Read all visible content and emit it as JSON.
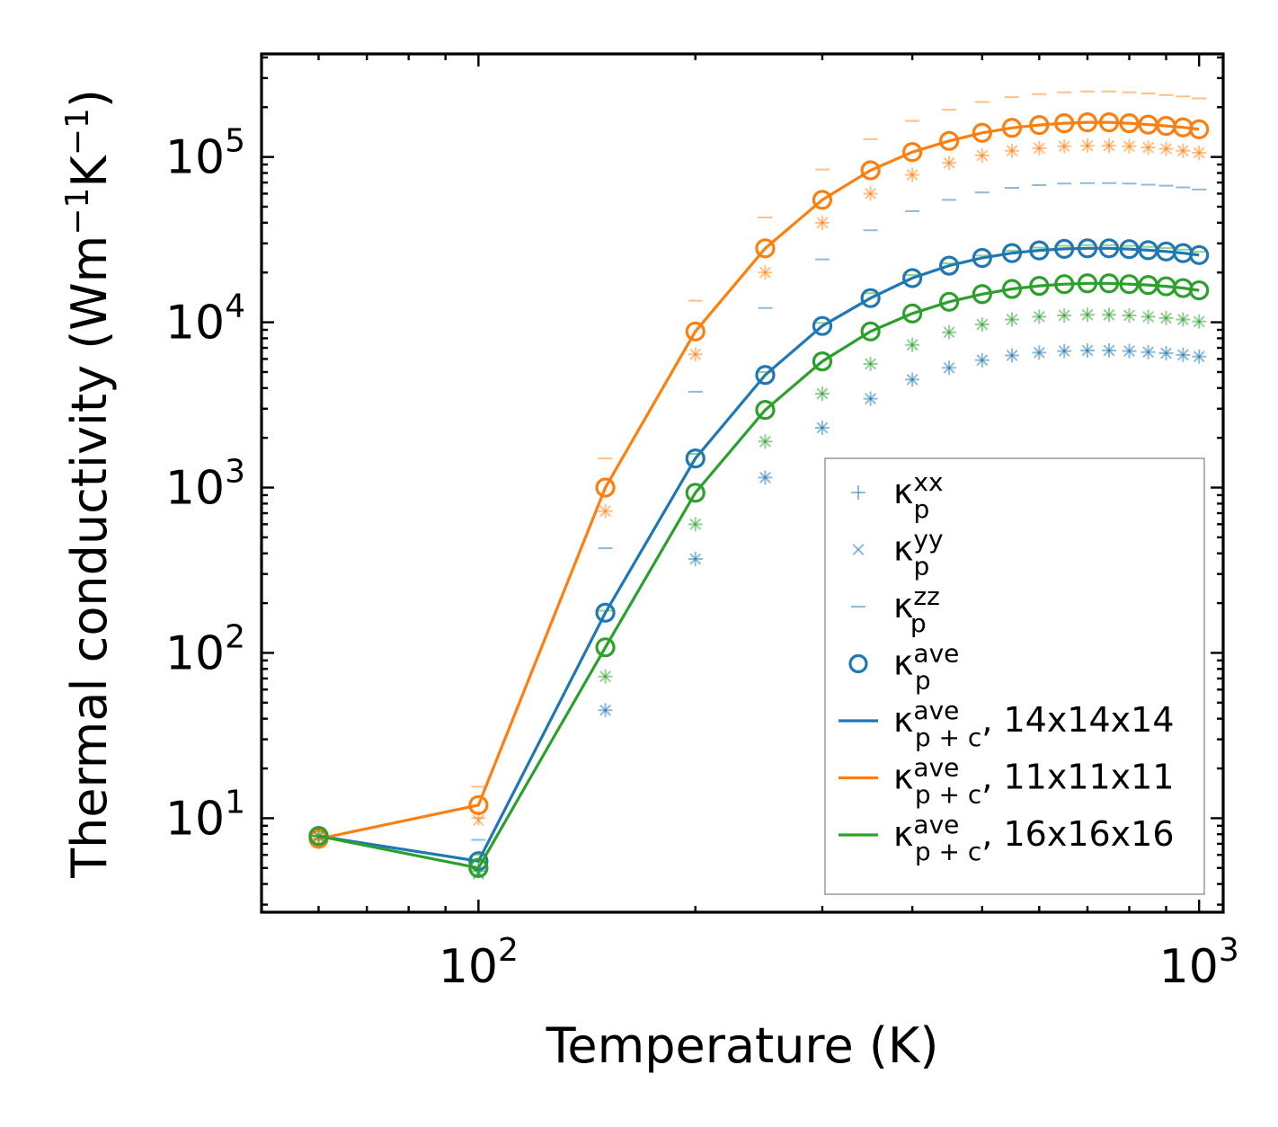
{
  "chart_data": {
    "type": "line",
    "xscale": "log",
    "yscale": "log",
    "xlim": [
      50,
      1080
    ],
    "ylim": [
      2.7,
      420000
    ],
    "xlabel": "Temperature (K)",
    "ylabel": {
      "main": "Thermal conductivity (Wm",
      "exp1": "−1",
      "mid": "K",
      "exp2": "−1",
      "close": ")"
    },
    "x_ticks": [
      {
        "value": 100,
        "base": "10",
        "exp": "2"
      },
      {
        "value": 1000,
        "base": "10",
        "exp": "3"
      }
    ],
    "y_ticks": [
      {
        "value": 10,
        "base": "10",
        "exp": "1"
      },
      {
        "value": 100,
        "base": "10",
        "exp": "2"
      },
      {
        "value": 1000,
        "base": "10",
        "exp": "3"
      },
      {
        "value": 10000,
        "base": "10",
        "exp": "4"
      },
      {
        "value": 100000,
        "base": "10",
        "exp": "5"
      }
    ],
    "x": [
      60,
      100,
      150,
      200,
      250,
      300,
      350,
      400,
      450,
      500,
      550,
      600,
      650,
      700,
      750,
      800,
      850,
      900,
      950,
      1000
    ],
    "series": [
      {
        "name": "14x14x14",
        "color": "#1f77b4",
        "ave": [
          7.8,
          5.5,
          175,
          1500,
          4800,
          9500,
          14000,
          18500,
          22000,
          24500,
          26200,
          27200,
          27800,
          28000,
          28000,
          27700,
          27300,
          26800,
          26200,
          25500
        ],
        "xx": [
          7.8,
          5.0,
          45,
          370,
          1150,
          2300,
          3450,
          4500,
          5300,
          5900,
          6300,
          6550,
          6700,
          6750,
          6750,
          6700,
          6600,
          6500,
          6350,
          6200
        ],
        "yy": [
          7.8,
          4.7,
          45,
          370,
          1150,
          2300,
          3450,
          4500,
          5300,
          5900,
          6300,
          6550,
          6700,
          6750,
          6750,
          6700,
          6600,
          6500,
          6350,
          6200
        ],
        "zz": [
          7.8,
          7.4,
          430,
          3800,
          12200,
          24000,
          36000,
          47000,
          55000,
          61000,
          65000,
          67500,
          69000,
          69500,
          69500,
          69000,
          68000,
          67000,
          65500,
          63500
        ]
      },
      {
        "name": "11x11x11",
        "color": "#ff7f0e",
        "ave": [
          7.5,
          12,
          1000,
          8800,
          28000,
          55000,
          83000,
          107000,
          125000,
          140000,
          150000,
          156000,
          160000,
          162000,
          162000,
          160000,
          157000,
          154000,
          151000,
          147000
        ],
        "xx": [
          7.5,
          10,
          720,
          6400,
          20000,
          40000,
          60000,
          78000,
          92000,
          102000,
          109000,
          113000,
          116000,
          117000,
          117000,
          116000,
          114000,
          112000,
          109000,
          106000
        ],
        "yy": [
          7.5,
          9.7,
          720,
          6400,
          20000,
          40000,
          60000,
          78000,
          92000,
          102000,
          109000,
          113000,
          116000,
          117000,
          117000,
          116000,
          114000,
          112000,
          109000,
          106000
        ],
        "zz": [
          7.5,
          15.5,
          1500,
          13500,
          43000,
          84000,
          128000,
          165000,
          193000,
          215000,
          230000,
          240000,
          246000,
          249000,
          249000,
          246000,
          242000,
          237000,
          232000,
          226000
        ]
      },
      {
        "name": "16x16x16",
        "color": "#2ca02c",
        "ave": [
          7.8,
          5.0,
          108,
          930,
          2950,
          5800,
          8800,
          11300,
          13300,
          14800,
          15900,
          16600,
          17000,
          17200,
          17200,
          17000,
          16800,
          16500,
          16100,
          15600
        ],
        "xx": [
          7.8,
          4.8,
          72,
          600,
          1900,
          3700,
          5600,
          7300,
          8700,
          9700,
          10400,
          10800,
          11000,
          11100,
          11100,
          11000,
          10800,
          10600,
          10400,
          10100
        ],
        "yy": [
          7.8,
          4.6,
          72,
          600,
          1900,
          3700,
          5600,
          7300,
          8700,
          9700,
          10400,
          10800,
          11000,
          11100,
          11100,
          11000,
          10800,
          10600,
          10400,
          10100
        ],
        "zz": [
          7.8,
          6.0,
          180,
          1600,
          5000,
          9900,
          15000,
          19300,
          22700,
          25300,
          27100,
          28300,
          29000,
          29300,
          29300,
          29000,
          28600,
          28100,
          27500,
          26700
        ]
      }
    ],
    "legend": {
      "placement": "lower-right",
      "entries": [
        {
          "marker": "plus",
          "color": "#1f77b4",
          "sym": "κ",
          "sub": "p",
          "sup": "xx",
          "suffix": ""
        },
        {
          "marker": "x",
          "color": "#1f77b4",
          "sym": "κ",
          "sub": "p",
          "sup": "yy",
          "suffix": ""
        },
        {
          "marker": "hline",
          "color": "#1f77b4",
          "sym": "κ",
          "sub": "p",
          "sup": "zz",
          "suffix": ""
        },
        {
          "marker": "circle",
          "color": "#1f77b4",
          "sym": "κ",
          "sub": "p",
          "sup": "ave",
          "suffix": ""
        },
        {
          "marker": "line",
          "color": "#1f77b4",
          "sym": "κ",
          "sub": "p + c",
          "sup": "ave",
          "suffix": ", 14x14x14"
        },
        {
          "marker": "line",
          "color": "#ff7f0e",
          "sym": "κ",
          "sub": "p + c",
          "sup": "ave",
          "suffix": ", 11x11x11"
        },
        {
          "marker": "line",
          "color": "#2ca02c",
          "sym": "κ",
          "sub": "p + c",
          "sup": "ave",
          "suffix": ", 16x16x16"
        }
      ]
    }
  }
}
